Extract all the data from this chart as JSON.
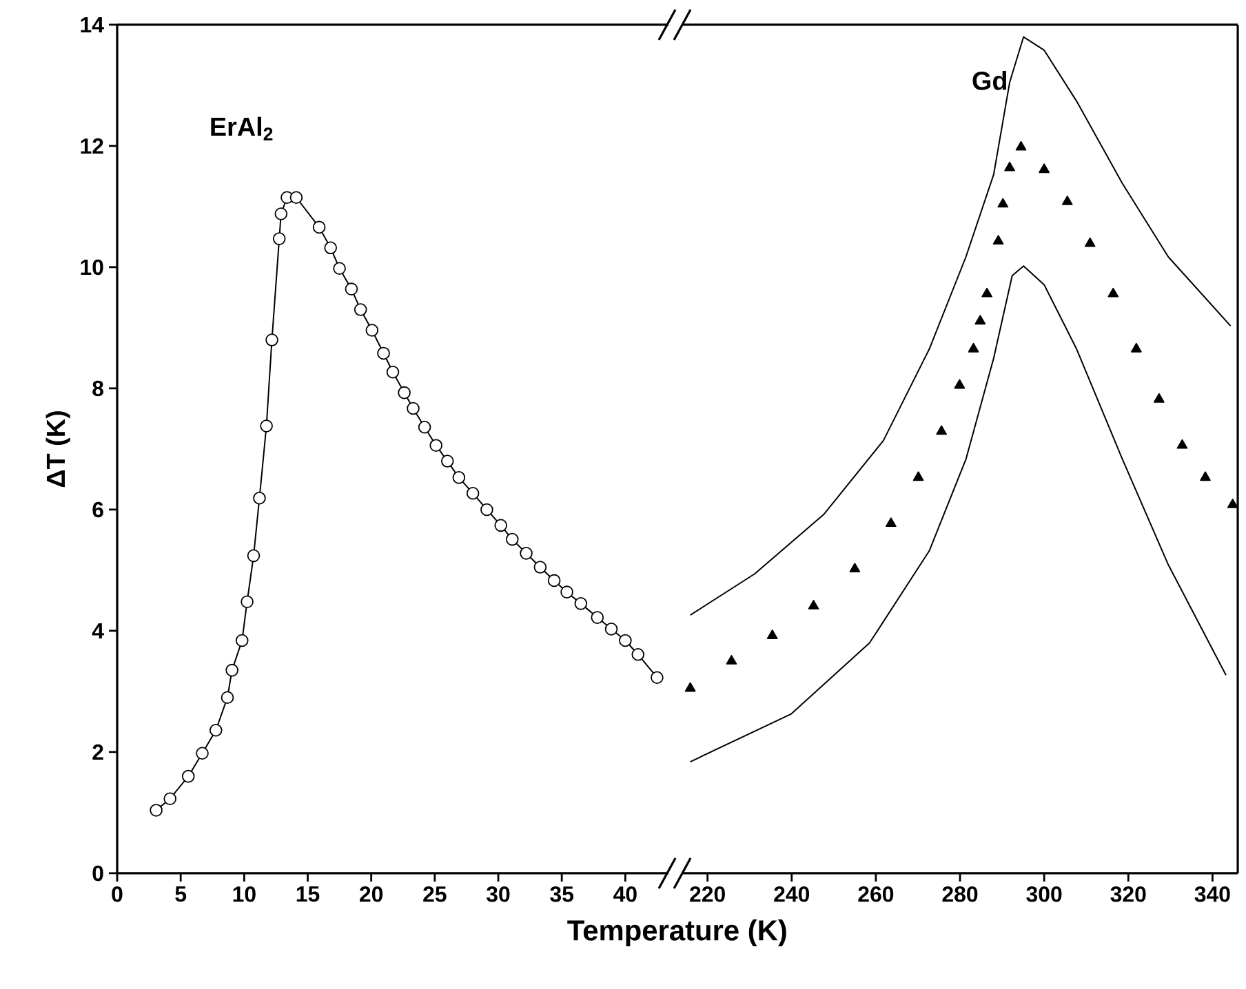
{
  "chart_data": [
    {
      "type": "line",
      "xlabel": "Temperature (K)",
      "ylabel": "ΔT (K)",
      "xlim": [
        0,
        43.4
      ],
      "xticks": [
        0,
        5,
        10,
        15,
        20,
        25,
        30,
        35,
        40
      ],
      "ylim": [
        0,
        14
      ],
      "yticks": [
        0,
        2,
        4,
        6,
        8,
        10,
        12,
        14
      ],
      "series": [
        {
          "name": "ErAl$_{2}$",
          "color": "#000000",
          "marker": "circle",
          "x": [
            3.07,
            4.16,
            5.6,
            6.7,
            7.77,
            8.68,
            9.04,
            9.83,
            10.23,
            10.74,
            11.2,
            11.75,
            12.18,
            12.76,
            12.9,
            13.37,
            14.1,
            15.9,
            16.8,
            17.5,
            18.44,
            19.16,
            20.06,
            20.97,
            21.7,
            22.6,
            23.3,
            24.2,
            25.1,
            26.0,
            26.9,
            28.0,
            29.1,
            30.2,
            31.1,
            32.2,
            33.3,
            34.4,
            35.4,
            36.5,
            37.8,
            38.9,
            40.0,
            41.0,
            42.5
          ],
          "values": [
            1.04,
            1.23,
            1.6,
            1.98,
            2.36,
            2.9,
            3.35,
            3.84,
            4.48,
            5.24,
            6.19,
            7.38,
            8.8,
            10.47,
            10.88,
            11.15,
            11.15,
            10.66,
            10.32,
            9.98,
            9.64,
            9.3,
            8.96,
            8.58,
            8.27,
            7.93,
            7.67,
            7.36,
            7.06,
            6.8,
            6.53,
            6.27,
            6.0,
            5.74,
            5.51,
            5.28,
            5.05,
            4.83,
            4.64,
            4.45,
            4.22,
            4.03,
            3.84,
            3.61,
            3.23
          ]
        }
      ]
    },
    {
      "type": "scatter",
      "xlim": [
        214,
        346
      ],
      "xticks": [
        220,
        240,
        260,
        280,
        300,
        320,
        340
      ],
      "ylim": [
        0,
        14
      ],
      "tick_labels": "x",
      "series": [
        {
          "name": "Gd",
          "type": "scatter",
          "color": "#000000",
          "marker": "triangle",
          "x": [
            215.9,
            225.7,
            235.4,
            245.2,
            255.0,
            263.6,
            270.1,
            275.6,
            279.9,
            283.2,
            284.8,
            286.4,
            289.1,
            290.2,
            291.8,
            294.5,
            300.0,
            305.5,
            310.9,
            316.4,
            321.9,
            327.3,
            332.8,
            338.3,
            344.8
          ],
          "values": [
            3.05,
            3.5,
            3.92,
            4.41,
            5.02,
            5.77,
            6.53,
            7.29,
            8.05,
            8.65,
            9.11,
            9.56,
            10.43,
            11.04,
            11.64,
            11.98,
            11.61,
            11.08,
            10.39,
            9.56,
            8.65,
            7.82,
            7.06,
            6.53,
            6.08
          ]
        },
        {
          "type": "line",
          "color": "#000000",
          "marker": "none",
          "x": [
            215.9,
            231.2,
            247.6,
            261.8,
            272.7,
            281.4,
            288.0,
            291.8,
            295.1,
            300.0,
            307.7,
            318.6,
            329.5,
            344.3
          ],
          "values": [
            4.26,
            4.94,
            5.92,
            7.14,
            8.65,
            10.17,
            11.53,
            13.05,
            13.8,
            13.58,
            12.74,
            11.38,
            10.17,
            9.03
          ]
        },
        {
          "type": "line",
          "color": "#000000",
          "marker": "none",
          "x": [
            215.9,
            239.9,
            258.5,
            272.7,
            281.4,
            288.0,
            292.4,
            295.1,
            300.0,
            307.7,
            318.6,
            329.5,
            343.2
          ],
          "values": [
            1.84,
            2.63,
            3.8,
            5.32,
            6.83,
            8.5,
            9.86,
            10.02,
            9.71,
            8.65,
            6.83,
            5.09,
            3.27
          ]
        }
      ]
    }
  ]
}
